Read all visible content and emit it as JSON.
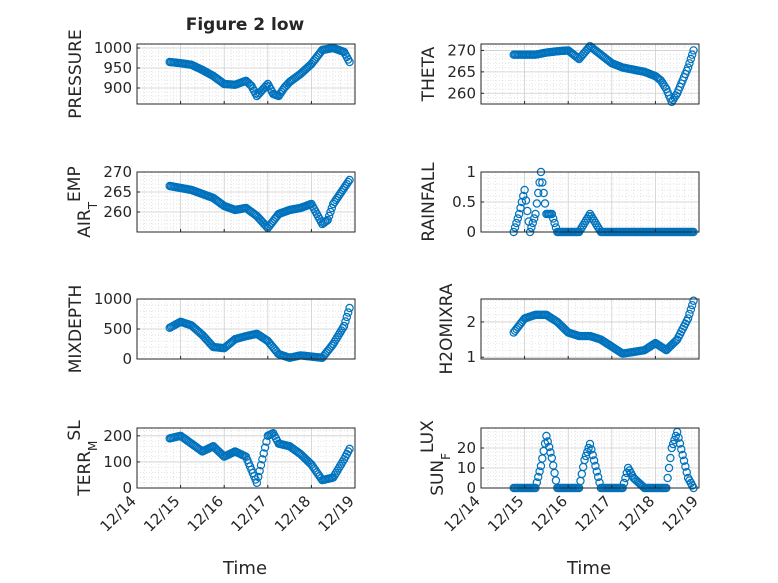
{
  "figure": {
    "title": "Figure 2 low",
    "xlabel": "Time",
    "marker_color": "#0072BD"
  },
  "chart_data": [
    {
      "type": "scatter",
      "ylabel": "PRESSURE",
      "xlim": [
        "12/14",
        "12/19"
      ],
      "ylim": [
        860,
        1010
      ],
      "yticks": [
        900,
        950,
        1000
      ],
      "x": [
        "12/14 18:00",
        "12/15 00:00",
        "12/15 06:00",
        "12/15 12:00",
        "12/15 18:00",
        "12/16 00:00",
        "12/16 06:00",
        "12/16 12:00",
        "12/16 15:00",
        "12/16 18:00",
        "12/16 21:00",
        "12/17 00:00",
        "12/17 03:00",
        "12/17 06:00",
        "12/17 09:00",
        "12/17 12:00",
        "12/17 18:00",
        "12/18 00:00",
        "12/18 06:00",
        "12/18 12:00",
        "12/18 18:00",
        "12/18 21:00"
      ],
      "y": [
        965,
        962,
        958,
        945,
        930,
        910,
        908,
        918,
        905,
        880,
        895,
        910,
        885,
        880,
        900,
        915,
        935,
        960,
        995,
        1000,
        990,
        965
      ]
    },
    {
      "type": "scatter",
      "ylabel": "THETA",
      "xlim": [
        "12/14",
        "12/19"
      ],
      "ylim": [
        257.5,
        271.5
      ],
      "yticks": [
        260,
        265,
        270
      ],
      "x": [
        "12/14 18:00",
        "12/15 00:00",
        "12/15 06:00",
        "12/15 12:00",
        "12/15 18:00",
        "12/16 00:00",
        "12/16 06:00",
        "12/16 12:00",
        "12/16 18:00",
        "12/17 00:00",
        "12/17 06:00",
        "12/17 12:00",
        "12/17 18:00",
        "12/18 00:00",
        "12/18 03:00",
        "12/18 06:00",
        "12/18 09:00",
        "12/18 12:00",
        "12/18 18:00",
        "12/18 21:00"
      ],
      "y": [
        269,
        269,
        269,
        269.5,
        269.8,
        270,
        268,
        271,
        269,
        267,
        266,
        265.5,
        265,
        264,
        263,
        261,
        258,
        260,
        266,
        270
      ]
    },
    {
      "type": "scatter",
      "ylabel": "AIR_TEMP",
      "xlim": [
        "12/14",
        "12/19"
      ],
      "ylim": [
        255,
        270
      ],
      "yticks": [
        260,
        265,
        270
      ],
      "x": [
        "12/14 18:00",
        "12/15 00:00",
        "12/15 06:00",
        "12/15 12:00",
        "12/15 18:00",
        "12/16 00:00",
        "12/16 06:00",
        "12/16 12:00",
        "12/16 18:00",
        "12/17 00:00",
        "12/17 06:00",
        "12/17 12:00",
        "12/17 18:00",
        "12/18 00:00",
        "12/18 06:00",
        "12/18 09:00",
        "12/18 12:00",
        "12/18 18:00",
        "12/18 21:00"
      ],
      "y": [
        266.5,
        266,
        265.5,
        264.5,
        263.5,
        261.5,
        260.5,
        261,
        259,
        256,
        259.5,
        260.5,
        261,
        262,
        257,
        258,
        262,
        266,
        268
      ]
    },
    {
      "type": "scatter",
      "ylabel": "RAINFALL",
      "xlim": [
        "12/14",
        "12/19"
      ],
      "ylim": [
        0,
        1
      ],
      "yticks": [
        0,
        0.5,
        1
      ],
      "x": [
        "12/14 18:00",
        "12/14 21:00",
        "12/15 00:00",
        "12/15 03:00",
        "12/15 06:00",
        "12/15 09:00",
        "12/15 12:00",
        "12/15 15:00",
        "12/15 18:00",
        "12/16 00:00",
        "12/16 06:00",
        "12/16 12:00",
        "12/16 18:00",
        "12/17 00:00",
        "12/17 06:00",
        "12/17 12:00",
        "12/17 18:00",
        "12/18 00:00",
        "12/18 06:00",
        "12/18 12:00",
        "12/18 18:00",
        "12/18 21:00"
      ],
      "y": [
        0,
        0.3,
        0.7,
        0,
        0.3,
        1,
        0.3,
        0.3,
        0,
        0,
        0,
        0.3,
        0,
        0,
        0,
        0,
        0,
        0,
        0,
        0,
        0,
        0
      ]
    },
    {
      "type": "scatter",
      "ylabel": "MIXDEPTH",
      "xlim": [
        "12/14",
        "12/19"
      ],
      "ylim": [
        0,
        1000
      ],
      "yticks": [
        0,
        500,
        1000
      ],
      "x": [
        "12/14 18:00",
        "12/15 00:00",
        "12/15 06:00",
        "12/15 12:00",
        "12/15 18:00",
        "12/16 00:00",
        "12/16 06:00",
        "12/16 12:00",
        "12/16 18:00",
        "12/17 00:00",
        "12/17 06:00",
        "12/17 12:00",
        "12/17 18:00",
        "12/18 00:00",
        "12/18 06:00",
        "12/18 12:00",
        "12/18 18:00",
        "12/18 21:00"
      ],
      "y": [
        520,
        620,
        560,
        400,
        200,
        180,
        330,
        380,
        420,
        300,
        80,
        20,
        60,
        40,
        20,
        250,
        550,
        850
      ]
    },
    {
      "type": "scatter",
      "ylabel": "H2OMIXRA",
      "xlim": [
        "12/14",
        "12/19"
      ],
      "ylim": [
        0.95,
        2.65
      ],
      "yticks": [
        1,
        2
      ],
      "x": [
        "12/14 18:00",
        "12/15 00:00",
        "12/15 06:00",
        "12/15 12:00",
        "12/15 18:00",
        "12/16 00:00",
        "12/16 06:00",
        "12/16 12:00",
        "12/16 18:00",
        "12/17 00:00",
        "12/17 06:00",
        "12/17 12:00",
        "12/17 18:00",
        "12/18 00:00",
        "12/18 06:00",
        "12/18 12:00",
        "12/18 18:00",
        "12/18 21:00"
      ],
      "y": [
        1.7,
        2.1,
        2.2,
        2.2,
        2.0,
        1.7,
        1.6,
        1.6,
        1.5,
        1.3,
        1.1,
        1.15,
        1.2,
        1.4,
        1.2,
        1.5,
        2.1,
        2.6
      ]
    },
    {
      "type": "scatter",
      "ylabel": "TERR_MSL",
      "xlim": [
        "12/14",
        "12/19"
      ],
      "ylim": [
        0,
        230
      ],
      "yticks": [
        0,
        100,
        200
      ],
      "x": [
        "12/14 18:00",
        "12/15 00:00",
        "12/15 06:00",
        "12/15 12:00",
        "12/15 18:00",
        "12/16 00:00",
        "12/16 06:00",
        "12/16 12:00",
        "12/16 15:00",
        "12/16 18:00",
        "12/17 00:00",
        "12/17 03:00",
        "12/17 06:00",
        "12/17 12:00",
        "12/17 18:00",
        "12/18 00:00",
        "12/18 06:00",
        "12/18 12:00",
        "12/18 18:00",
        "12/18 21:00"
      ],
      "y": [
        190,
        200,
        170,
        140,
        160,
        120,
        140,
        120,
        70,
        20,
        200,
        210,
        170,
        160,
        130,
        90,
        30,
        40,
        110,
        150
      ]
    },
    {
      "type": "scatter",
      "ylabel": "SUN_FLUX",
      "xlim": [
        "12/14",
        "12/19"
      ],
      "ylim": [
        0,
        30
      ],
      "yticks": [
        0,
        10,
        20
      ],
      "x": [
        "12/14 18:00",
        "12/15 00:00",
        "12/15 06:00",
        "12/15 09:00",
        "12/15 12:00",
        "12/15 15:00",
        "12/15 18:00",
        "12/16 00:00",
        "12/16 06:00",
        "12/16 09:00",
        "12/16 12:00",
        "12/16 15:00",
        "12/16 18:00",
        "12/17 00:00",
        "12/17 06:00",
        "12/17 09:00",
        "12/17 12:00",
        "12/17 18:00",
        "12/18 00:00",
        "12/18 06:00",
        "12/18 09:00",
        "12/18 12:00",
        "12/18 18:00",
        "12/18 21:00"
      ],
      "y": [
        0,
        0,
        0,
        11,
        26,
        15,
        0,
        0,
        0,
        14,
        22,
        11,
        0,
        0,
        0,
        10,
        5,
        0,
        0,
        0,
        20,
        28,
        5,
        0
      ]
    }
  ]
}
